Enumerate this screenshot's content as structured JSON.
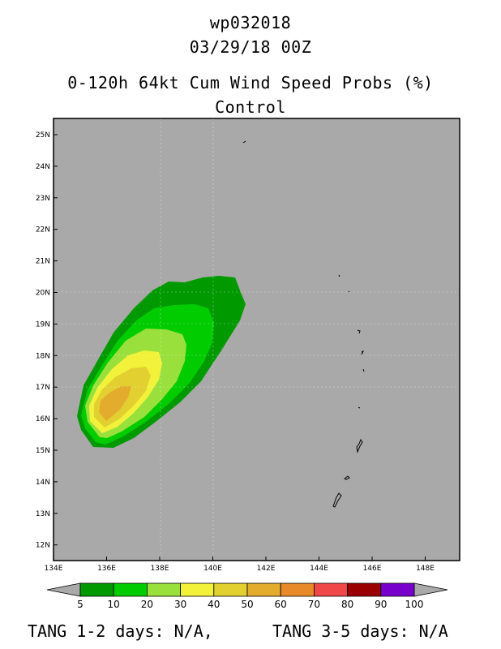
{
  "header": {
    "storm_id": "wp032018",
    "datetime": "03/29/18 00Z",
    "product": "0-120h 64kt Cum Wind Speed Probs (%)",
    "member": "Control"
  },
  "map": {
    "lat_labels": [
      "25N",
      "24N",
      "23N",
      "22N",
      "21N",
      "20N",
      "19N",
      "18N",
      "17N",
      "16N",
      "15N",
      "14N",
      "13N",
      "12N"
    ],
    "lon_labels": [
      "134E",
      "136E",
      "138E",
      "140E",
      "142E",
      "144E",
      "146E",
      "148E"
    ],
    "ocean_color": "#a9a9a9"
  },
  "chart_data": {
    "type": "heatmap",
    "lat_range": [
      11.6,
      25.5
    ],
    "lon_range": [
      134,
      149.5
    ],
    "probability_levels": [
      5,
      10,
      20,
      30,
      40,
      50,
      60,
      70,
      80,
      90,
      100
    ],
    "level_colors": [
      "#009a00",
      "#00cc00",
      "#99e03c",
      "#f2f23a",
      "#e2d030",
      "#e3ac2d",
      "#e98a2a",
      "#f04848",
      "#9a0000",
      "#7800cc"
    ],
    "max_probability_band": [
      50,
      60
    ],
    "max_probability_center": {
      "lon": 136.5,
      "lat": 16.4
    }
  },
  "colorbar": {
    "labels": [
      "5",
      "10",
      "20",
      "30",
      "40",
      "50",
      "60",
      "70",
      "80",
      "90",
      "100"
    ]
  },
  "footer": {
    "tang_1_2": "TANG 1-2 days:  N/A,",
    "tang_3_5": "TANG 3-5 days:  N/A"
  }
}
